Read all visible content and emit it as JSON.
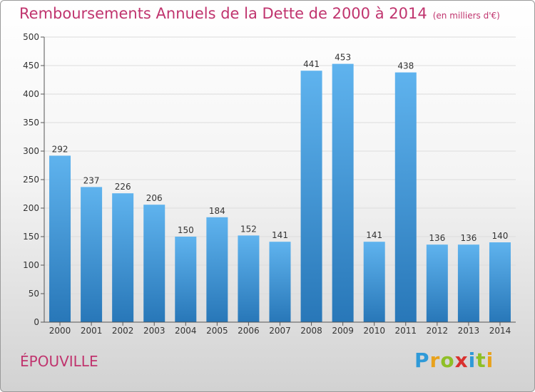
{
  "title": "Remboursements Annuels de la Dette de 2000 à 2014",
  "unit": "(en milliers d'€)",
  "place": "ÉPOUVILLE",
  "brand": {
    "letters": [
      {
        "ch": "P",
        "color": "#2f9ad8"
      },
      {
        "ch": "r",
        "color": "#e8a21c"
      },
      {
        "ch": "o",
        "color": "#8fbf27"
      },
      {
        "ch": "x",
        "color": "#d9312f"
      },
      {
        "ch": "i",
        "color": "#2f9ad8"
      },
      {
        "ch": "t",
        "color": "#8fbf27"
      },
      {
        "ch": "i",
        "color": "#e8a21c"
      }
    ]
  },
  "colors": {
    "bar_top": "#5fb3ee",
    "bar_bottom": "#2877b8",
    "title": "#c0346e"
  },
  "chart_data": {
    "type": "bar",
    "title": "Remboursements Annuels de la Dette de 2000 à 2014",
    "xlabel": "",
    "ylabel": "(en milliers d'€)",
    "categories": [
      "2000",
      "2001",
      "2002",
      "2003",
      "2004",
      "2005",
      "2006",
      "2007",
      "2008",
      "2009",
      "2010",
      "2011",
      "2012",
      "2013",
      "2014"
    ],
    "values": [
      292,
      237,
      226,
      206,
      150,
      184,
      152,
      141,
      441,
      453,
      141,
      438,
      136,
      136,
      140
    ],
    "ylim": [
      0,
      500
    ],
    "yticks": [
      0,
      50,
      100,
      150,
      200,
      250,
      300,
      350,
      400,
      450,
      500
    ],
    "grid": true
  }
}
